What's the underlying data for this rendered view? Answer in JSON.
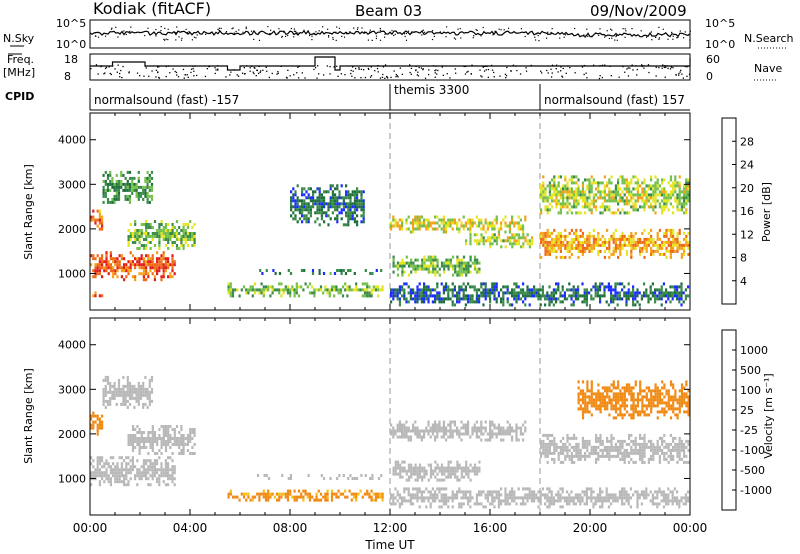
{
  "header": {
    "station": "Kodiak (fitACF)",
    "beam": "Beam 03",
    "date": "09/Nov/2009"
  },
  "top_panels": {
    "nsky_label": "N.Sky",
    "nsky_ticks": [
      "10^5",
      "10^0"
    ],
    "nsearch_label": "N.Search",
    "nsearch_ticks": [
      "10^5",
      "10^0"
    ],
    "freq_label_line1": "Freq.",
    "freq_label_line2": "[MHz]",
    "freq_ticks": [
      "18",
      "8"
    ],
    "nave_label": "Nave",
    "nave_ticks": [
      "60",
      "0"
    ],
    "cpid_label": "CPID",
    "cpid_segments": [
      {
        "label": "normalsound (fast) -157",
        "start_hour": 0
      },
      {
        "label": "themis 3300",
        "start_hour": 12
      },
      {
        "label": "normalsound (fast) 157",
        "start_hour": 18
      }
    ]
  },
  "power_colorbar": {
    "title": "Power [dB]",
    "ticks": [
      "4",
      "8",
      "12",
      "16",
      "20",
      "24",
      "28"
    ],
    "colors": [
      "#1b2cff",
      "#1e6f3c",
      "#3a8a4a",
      "#74c04a",
      "#e5e522",
      "#f5a21b",
      "#ef6a14",
      "#e21b1b"
    ]
  },
  "velocity_colorbar": {
    "title": "Velocity [m s⁻¹]",
    "ticks": [
      "1000",
      "500",
      "100",
      "25",
      "-25",
      "-100",
      "-500",
      "-1000"
    ],
    "colors": [
      "#1b2cff",
      "#2d7a3d",
      "#4aa84a",
      "#9bd445",
      "#b8b8b8",
      "#f4c21b",
      "#f08a14",
      "#e82a14",
      "#d40f0f"
    ]
  },
  "chart_data": [
    {
      "type": "heatmap",
      "title": "Power [dB]",
      "xlabel": "",
      "ylabel": "Slant Range [km]",
      "xlim_hours": [
        0,
        24
      ],
      "ylim": [
        180,
        4600
      ],
      "y_ticks": [
        1000,
        2000,
        3000,
        4000
      ],
      "vertical_dashed_lines_hours": [
        12,
        18
      ],
      "regions": [
        {
          "t0": 0.0,
          "t1": 3.5,
          "r0": 800,
          "r1": 1500,
          "value": 27
        },
        {
          "t0": 0.0,
          "t1": 0.6,
          "r0": 1900,
          "r1": 2500,
          "value": 24
        },
        {
          "t0": 1.5,
          "t1": 4.3,
          "r0": 1500,
          "r1": 2200,
          "value": 14
        },
        {
          "t0": 0.5,
          "t1": 2.6,
          "r0": 2500,
          "r1": 3300,
          "value": 10
        },
        {
          "t0": 0.0,
          "t1": 0.6,
          "r0": 400,
          "r1": 600,
          "value": 26
        },
        {
          "t0": 5.5,
          "t1": 11.8,
          "r0": 400,
          "r1": 800,
          "value": 14
        },
        {
          "t0": 6.5,
          "t1": 11.8,
          "r0": 900,
          "r1": 1100,
          "value": 8
        },
        {
          "t0": 8.0,
          "t1": 11.0,
          "r0": 2000,
          "r1": 3000,
          "value": 6
        },
        {
          "t0": 12.0,
          "t1": 17.5,
          "r0": 1850,
          "r1": 2300,
          "value": 18
        },
        {
          "t0": 12.1,
          "t1": 15.7,
          "r0": 900,
          "r1": 1400,
          "value": 13
        },
        {
          "t0": 15.0,
          "t1": 17.8,
          "r0": 1500,
          "r1": 1900,
          "value": 16
        },
        {
          "t0": 18.0,
          "t1": 24.0,
          "r0": 1300,
          "r1": 2000,
          "value": 22
        },
        {
          "t0": 18.0,
          "t1": 24.0,
          "r0": 2300,
          "r1": 3200,
          "value": 16
        },
        {
          "t0": 12.0,
          "t1": 24.0,
          "r0": 200,
          "r1": 800,
          "value": 6
        }
      ]
    },
    {
      "type": "heatmap",
      "title": "Velocity [m s⁻¹]",
      "xlabel": "Time UT",
      "ylabel": "Slant Range [km]",
      "xlim_hours": [
        0,
        24
      ],
      "ylim": [
        180,
        4600
      ],
      "y_ticks": [
        1000,
        2000,
        3000,
        4000
      ],
      "x_ticks": [
        "00:00",
        "04:00",
        "08:00",
        "12:00",
        "16:00",
        "20:00",
        "00:00"
      ],
      "vertical_dashed_lines_hours": [
        12,
        18
      ],
      "regions": [
        {
          "t0": 0.0,
          "t1": 3.5,
          "r0": 800,
          "r1": 1500,
          "value": 0
        },
        {
          "t0": 0.0,
          "t1": 0.6,
          "r0": 1900,
          "r1": 2500,
          "value": -150
        },
        {
          "t0": 1.5,
          "t1": 4.3,
          "r0": 1500,
          "r1": 2200,
          "value": 0
        },
        {
          "t0": 0.5,
          "t1": 2.6,
          "r0": 2500,
          "r1": 3300,
          "value": 0
        },
        {
          "t0": 5.5,
          "t1": 11.8,
          "r0": 450,
          "r1": 750,
          "value": -90
        },
        {
          "t0": 6.5,
          "t1": 11.8,
          "r0": 900,
          "r1": 1100,
          "value": 0
        },
        {
          "t0": 12.0,
          "t1": 17.5,
          "r0": 1800,
          "r1": 2300,
          "value": 0
        },
        {
          "t0": 12.1,
          "t1": 15.7,
          "r0": 900,
          "r1": 1400,
          "value": 0
        },
        {
          "t0": 18.0,
          "t1": 24.0,
          "r0": 1300,
          "r1": 2000,
          "value": 0
        },
        {
          "t0": 19.5,
          "t1": 24.0,
          "r0": 2300,
          "r1": 3200,
          "value": -150
        },
        {
          "t0": 12.0,
          "t1": 24.0,
          "r0": 300,
          "r1": 800,
          "value": 0
        }
      ]
    }
  ]
}
